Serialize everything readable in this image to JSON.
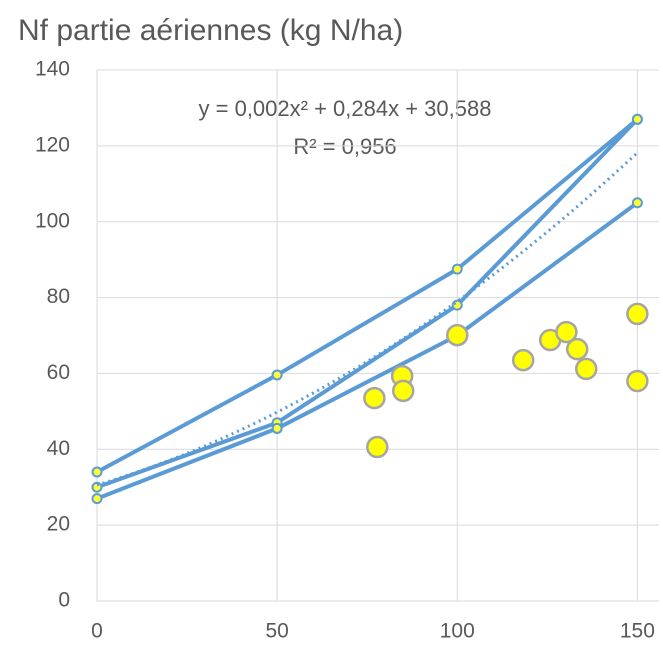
{
  "chart_data": {
    "type": "combo",
    "title": "Nf partie aériennes (kg N/ha)",
    "xlim": [
      0,
      156
    ],
    "xticks": [
      0,
      50,
      100,
      150
    ],
    "ylim": [
      0,
      140
    ],
    "yticks": [
      0,
      20,
      40,
      60,
      80,
      100,
      120,
      140
    ],
    "grid": true,
    "series": [
      {
        "type": "line",
        "color": "#5b9bd5",
        "marker_color": "#ffff33",
        "x": [
          0,
          50,
          100,
          150
        ],
        "values": [
          34,
          59.6,
          87.5,
          127
        ]
      },
      {
        "type": "line",
        "color": "#5b9bd5",
        "marker_color": "#ffff33",
        "x": [
          0,
          50,
          100,
          150
        ],
        "values": [
          30,
          47,
          78,
          127
        ]
      },
      {
        "type": "line",
        "color": "#5b9bd5",
        "marker_color": "#ffff33",
        "x": [
          0,
          50,
          100,
          150
        ],
        "values": [
          27,
          45.5,
          70,
          105
        ]
      },
      {
        "type": "scatter",
        "color": "#ffff00",
        "x": [
          77,
          77.8,
          84.7,
          85,
          100,
          118.3,
          125.8,
          130.3,
          133.3,
          135.8,
          150,
          150
        ],
        "values": [
          53.5,
          40.6,
          59.3,
          55.4,
          70.1,
          63.5,
          68.8,
          70.9,
          66.4,
          61.2,
          75.7,
          58
        ]
      }
    ],
    "trendline": {
      "type": "polynomial",
      "color": "#5b9bd5",
      "coefficients": [
        0.002,
        0.284,
        30.588
      ],
      "equation": "y = 0,002x² + 0,284x + 30,588",
      "r2": "R² = 0,956"
    }
  }
}
